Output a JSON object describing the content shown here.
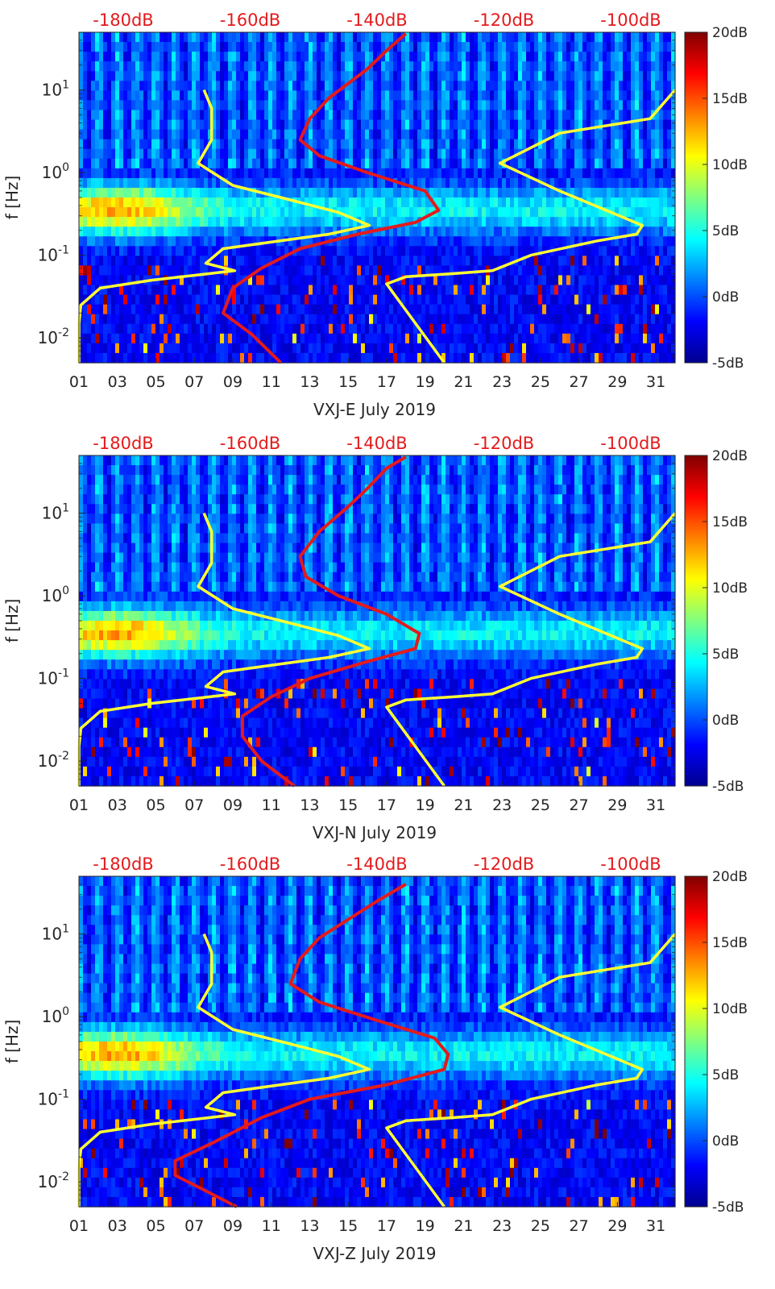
{
  "figure": {
    "colormap": [
      "#00008f",
      "#0000ff",
      "#0080ff",
      "#00ffff",
      "#80ff80",
      "#ffff00",
      "#ff8000",
      "#ff0000",
      "#800000"
    ]
  },
  "chart_data": [
    {
      "type": "heatmap",
      "title": "",
      "xlabel": "VXJ-E July 2019",
      "ylabel": "f [Hz]",
      "x_ticks": [
        "01",
        "03",
        "05",
        "07",
        "09",
        "11",
        "13",
        "15",
        "17",
        "19",
        "21",
        "23",
        "25",
        "27",
        "29",
        "31"
      ],
      "xlim": [
        1,
        32
      ],
      "y_scale": "log",
      "ylim": [
        0.005,
        50
      ],
      "y_ticks": [
        "10-2",
        "10-1",
        "100",
        "101"
      ],
      "top_ticks": [
        "-180dB",
        "-160dB",
        "-140dB",
        "-120dB",
        "-100dB"
      ],
      "colorbar": {
        "ticks": [
          "20dB",
          "15dB",
          "10dB",
          "5dB",
          "0dB",
          "-5dB"
        ],
        "range": [
          -5,
          20
        ]
      },
      "series": [
        {
          "kind": "noise-model-bounds",
          "segments": [
            [
              [
                1.0,
                0.005
              ],
              [
                1.0,
                0.015
              ],
              [
                1.1,
                0.025
              ],
              [
                2.1,
                0.04
              ],
              [
                4.8,
                0.05
              ],
              [
                7.8,
                0.06
              ],
              [
                9.1,
                0.065
              ],
              [
                7.6,
                0.08
              ],
              [
                8.5,
                0.12
              ],
              [
                11.5,
                0.15
              ],
              [
                14.0,
                0.18
              ],
              [
                16.1,
                0.23
              ],
              [
                14.5,
                0.33
              ],
              [
                11.5,
                0.5
              ],
              [
                9.0,
                0.7
              ],
              [
                7.2,
                1.3
              ],
              [
                7.9,
                2.5
              ],
              [
                7.9,
                6.0
              ],
              [
                7.5,
                10
              ]
            ],
            [
              [
                20.0,
                0.005
              ],
              [
                17.0,
                0.045
              ],
              [
                18.0,
                0.055
              ],
              [
                20.5,
                0.06
              ],
              [
                22.5,
                0.065
              ],
              [
                24.5,
                0.1
              ],
              [
                28.0,
                0.15
              ],
              [
                30.0,
                0.18
              ],
              [
                30.3,
                0.23
              ],
              [
                26.0,
                0.6
              ],
              [
                22.9,
                1.3
              ],
              [
                26.0,
                3.0
              ],
              [
                30.7,
                4.5
              ],
              [
                32.0,
                10
              ]
            ]
          ]
        },
        {
          "kind": "median-psd",
          "points": [
            [
              11.5,
              0.005
            ],
            [
              10.0,
              0.011
            ],
            [
              8.5,
              0.02
            ],
            [
              9.0,
              0.04
            ],
            [
              10.5,
              0.07
            ],
            [
              12.5,
              0.12
            ],
            [
              15.5,
              0.18
            ],
            [
              18.5,
              0.25
            ],
            [
              19.7,
              0.35
            ],
            [
              19.0,
              0.6
            ],
            [
              16.0,
              1.0
            ],
            [
              13.5,
              1.6
            ],
            [
              12.5,
              2.5
            ],
            [
              13.0,
              4.5
            ],
            [
              14.0,
              8.0
            ],
            [
              15.0,
              12
            ],
            [
              16.0,
              18
            ],
            [
              17.0,
              30
            ],
            [
              18.0,
              48
            ]
          ]
        }
      ]
    },
    {
      "type": "heatmap",
      "title": "",
      "xlabel": "VXJ-N July 2019",
      "ylabel": "f [Hz]",
      "x_ticks": [
        "01",
        "03",
        "05",
        "07",
        "09",
        "11",
        "13",
        "15",
        "17",
        "19",
        "21",
        "23",
        "25",
        "27",
        "29",
        "31"
      ],
      "xlim": [
        1,
        32
      ],
      "y_scale": "log",
      "ylim": [
        0.005,
        50
      ],
      "y_ticks": [
        "10-2",
        "10-1",
        "100",
        "101"
      ],
      "top_ticks": [
        "-180dB",
        "-160dB",
        "-140dB",
        "-120dB",
        "-100dB"
      ],
      "colorbar": {
        "ticks": [
          "20dB",
          "15dB",
          "10dB",
          "5dB",
          "0dB",
          "-5dB"
        ],
        "range": [
          -5,
          20
        ]
      },
      "series": [
        {
          "kind": "noise-model-bounds",
          "segments": [
            [
              [
                1.0,
                0.005
              ],
              [
                1.0,
                0.015
              ],
              [
                1.1,
                0.025
              ],
              [
                2.1,
                0.04
              ],
              [
                4.8,
                0.05
              ],
              [
                7.8,
                0.06
              ],
              [
                9.1,
                0.065
              ],
              [
                7.6,
                0.08
              ],
              [
                8.5,
                0.12
              ],
              [
                11.5,
                0.15
              ],
              [
                14.0,
                0.18
              ],
              [
                16.1,
                0.23
              ],
              [
                14.5,
                0.33
              ],
              [
                11.5,
                0.5
              ],
              [
                9.0,
                0.7
              ],
              [
                7.2,
                1.3
              ],
              [
                7.9,
                2.5
              ],
              [
                7.9,
                6.0
              ],
              [
                7.5,
                10
              ]
            ],
            [
              [
                20.0,
                0.005
              ],
              [
                17.0,
                0.045
              ],
              [
                18.0,
                0.055
              ],
              [
                20.5,
                0.06
              ],
              [
                22.5,
                0.065
              ],
              [
                24.5,
                0.1
              ],
              [
                28.0,
                0.15
              ],
              [
                30.0,
                0.18
              ],
              [
                30.3,
                0.23
              ],
              [
                26.0,
                0.6
              ],
              [
                22.9,
                1.3
              ],
              [
                26.0,
                3.0
              ],
              [
                30.7,
                4.5
              ],
              [
                32.0,
                10
              ]
            ]
          ]
        },
        {
          "kind": "median-psd",
          "points": [
            [
              12.2,
              0.005
            ],
            [
              10.5,
              0.01
            ],
            [
              9.5,
              0.02
            ],
            [
              9.5,
              0.035
            ],
            [
              11.0,
              0.06
            ],
            [
              13.0,
              0.1
            ],
            [
              16.0,
              0.16
            ],
            [
              18.5,
              0.23
            ],
            [
              18.7,
              0.35
            ],
            [
              17.0,
              0.6
            ],
            [
              14.5,
              1.0
            ],
            [
              12.8,
              1.7
            ],
            [
              12.5,
              3.0
            ],
            [
              13.5,
              6.0
            ],
            [
              15.0,
              12
            ],
            [
              16.0,
              20
            ],
            [
              17.0,
              35
            ],
            [
              18.0,
              48
            ]
          ]
        }
      ]
    },
    {
      "type": "heatmap",
      "title": "",
      "xlabel": "VXJ-Z July 2019",
      "ylabel": "f [Hz]",
      "x_ticks": [
        "01",
        "03",
        "05",
        "07",
        "09",
        "11",
        "13",
        "15",
        "17",
        "19",
        "21",
        "23",
        "25",
        "27",
        "29",
        "31"
      ],
      "xlim": [
        1,
        32
      ],
      "y_scale": "log",
      "ylim": [
        0.005,
        50
      ],
      "y_ticks": [
        "10-2",
        "10-1",
        "100",
        "101"
      ],
      "top_ticks": [
        "-180dB",
        "-160dB",
        "-140dB",
        "-120dB",
        "-100dB"
      ],
      "colorbar": {
        "ticks": [
          "20dB",
          "15dB",
          "10dB",
          "5dB",
          "0dB",
          "-5dB"
        ],
        "range": [
          -5,
          20
        ]
      },
      "series": [
        {
          "kind": "noise-model-bounds",
          "segments": [
            [
              [
                1.0,
                0.005
              ],
              [
                1.0,
                0.015
              ],
              [
                1.1,
                0.025
              ],
              [
                2.1,
                0.04
              ],
              [
                4.8,
                0.05
              ],
              [
                7.8,
                0.06
              ],
              [
                9.1,
                0.065
              ],
              [
                7.6,
                0.08
              ],
              [
                8.5,
                0.12
              ],
              [
                11.5,
                0.15
              ],
              [
                14.0,
                0.18
              ],
              [
                16.1,
                0.23
              ],
              [
                14.5,
                0.33
              ],
              [
                11.5,
                0.5
              ],
              [
                9.0,
                0.7
              ],
              [
                7.2,
                1.3
              ],
              [
                7.9,
                2.5
              ],
              [
                7.9,
                6.0
              ],
              [
                7.5,
                10
              ]
            ],
            [
              [
                20.0,
                0.005
              ],
              [
                17.0,
                0.045
              ],
              [
                18.0,
                0.055
              ],
              [
                20.5,
                0.06
              ],
              [
                22.5,
                0.065
              ],
              [
                24.5,
                0.1
              ],
              [
                28.0,
                0.15
              ],
              [
                30.0,
                0.18
              ],
              [
                30.3,
                0.23
              ],
              [
                26.0,
                0.6
              ],
              [
                22.9,
                1.3
              ],
              [
                26.0,
                3.0
              ],
              [
                30.7,
                4.5
              ],
              [
                32.0,
                10
              ]
            ]
          ]
        },
        {
          "kind": "median-psd",
          "points": [
            [
              9.2,
              0.005
            ],
            [
              7.5,
              0.008
            ],
            [
              6.0,
              0.012
            ],
            [
              6.0,
              0.018
            ],
            [
              8.0,
              0.03
            ],
            [
              10.5,
              0.06
            ],
            [
              13.0,
              0.1
            ],
            [
              17.0,
              0.15
            ],
            [
              20.0,
              0.23
            ],
            [
              20.2,
              0.35
            ],
            [
              19.5,
              0.55
            ],
            [
              16.5,
              0.9
            ],
            [
              13.5,
              1.5
            ],
            [
              12.0,
              2.5
            ],
            [
              12.5,
              5.0
            ],
            [
              13.5,
              9.0
            ],
            [
              15.0,
              15
            ],
            [
              16.5,
              25
            ],
            [
              18.0,
              40
            ]
          ]
        }
      ]
    }
  ]
}
